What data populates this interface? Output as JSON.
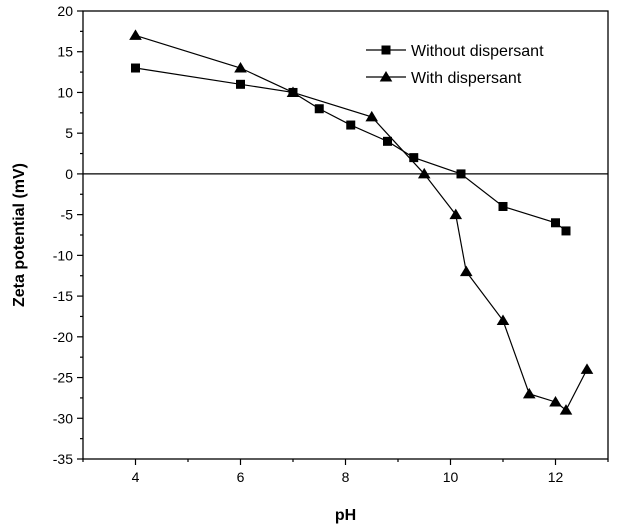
{
  "chart_data": {
    "type": "line",
    "title": "",
    "xlabel": "pH",
    "ylabel": "Zeta potential (mV)",
    "xlim": [
      3,
      13
    ],
    "ylim": [
      -35,
      20
    ],
    "xticks": [
      4,
      6,
      8,
      10,
      12
    ],
    "yticks": [
      -35,
      -30,
      -25,
      -20,
      -15,
      -10,
      -5,
      0,
      5,
      10,
      15,
      20
    ],
    "grid": false,
    "zero_line": true,
    "legend_position": "top-right",
    "series": [
      {
        "name": "Without dispersant",
        "marker": "square",
        "color": "#000000",
        "x": [
          4,
          6,
          7,
          7.5,
          8.1,
          8.8,
          9.3,
          10.2,
          11,
          12,
          12.2
        ],
        "y": [
          13,
          11,
          10,
          8,
          6,
          4,
          2,
          0,
          -4,
          -6,
          -7
        ]
      },
      {
        "name": "With dispersant",
        "marker": "triangle",
        "color": "#000000",
        "x": [
          4,
          6,
          7,
          8.5,
          9.5,
          10.1,
          10.3,
          11,
          11.5,
          12,
          12.2,
          12.6
        ],
        "y": [
          17,
          13,
          10,
          7,
          0,
          -5,
          -12,
          -18,
          -27,
          -28,
          -29,
          -24
        ]
      }
    ]
  }
}
